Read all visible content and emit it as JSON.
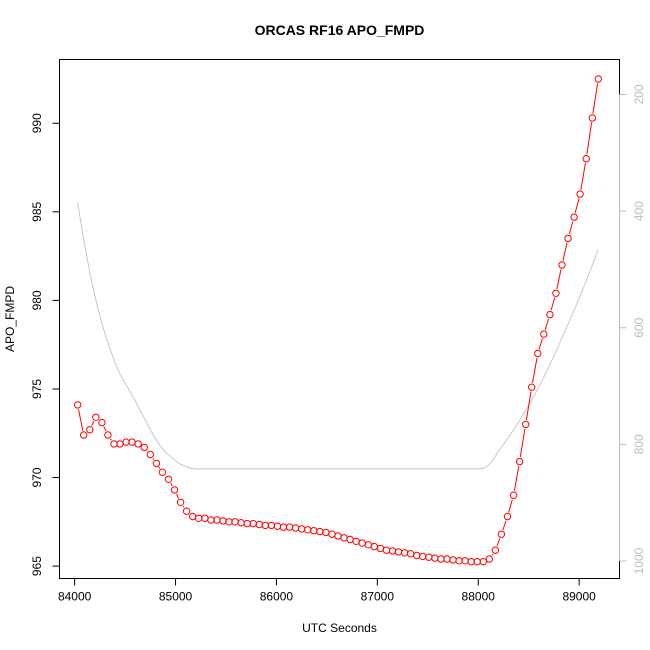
{
  "chart_data": {
    "type": "line",
    "title": "ORCAS RF16 APO_FMPD",
    "xlabel": "UTC Seconds",
    "ylabel": "APO_FMPD",
    "xlim": [
      83850,
      89400
    ],
    "ylim": [
      964.3,
      993.6
    ],
    "right_ylim": [
      1030,
      140
    ],
    "x_ticks": [
      84000,
      85000,
      86000,
      87000,
      88000,
      89000
    ],
    "x_tick_labels": [
      "84000",
      "85000",
      "86000",
      "87000",
      "88000",
      "89000"
    ],
    "y_ticks": [
      965,
      970,
      975,
      980,
      985,
      990
    ],
    "y_tick_labels": [
      "965",
      "970",
      "975",
      "980",
      "985",
      "990"
    ],
    "right_y_ticks": [
      200,
      400,
      600,
      800,
      1000
    ],
    "right_y_tick_labels": [
      "200",
      "400",
      "600",
      "800",
      "1000"
    ],
    "grid": false,
    "colors": {
      "series": "#ff0000",
      "secondary": "#c8c8c8",
      "axis": "#000000",
      "right_axis": "#bdbdbd"
    },
    "series": [
      {
        "marker": "circle-open",
        "line_style": "solid",
        "x": [
          84030,
          84090,
          84150,
          84210,
          84270,
          84330,
          84390,
          84450,
          84510,
          84570,
          84630,
          84690,
          84750,
          84810,
          84870,
          84930,
          84990,
          85050,
          85110,
          85170,
          85230,
          85290,
          85350,
          85410,
          85470,
          85530,
          85590,
          85650,
          85710,
          85770,
          85830,
          85890,
          85950,
          86010,
          86070,
          86130,
          86190,
          86250,
          86310,
          86370,
          86430,
          86490,
          86550,
          86610,
          86670,
          86730,
          86790,
          86850,
          86910,
          86970,
          87030,
          87090,
          87150,
          87210,
          87270,
          87330,
          87390,
          87450,
          87510,
          87570,
          87630,
          87690,
          87750,
          87810,
          87870,
          87930,
          87990,
          88050,
          88110,
          88170,
          88230,
          88290,
          88350,
          88410,
          88470,
          88530,
          88590,
          88650,
          88710,
          88770,
          88830,
          88890,
          88950,
          89010,
          89070,
          89130,
          89190
        ],
        "y": [
          974.1,
          972.4,
          972.7,
          973.4,
          973.1,
          972.4,
          971.9,
          971.9,
          972.0,
          972.0,
          971.9,
          971.7,
          971.3,
          970.8,
          970.3,
          969.9,
          969.3,
          968.6,
          968.1,
          967.8,
          967.7,
          967.7,
          967.6,
          967.6,
          967.55,
          967.5,
          967.5,
          967.45,
          967.4,
          967.4,
          967.35,
          967.3,
          967.3,
          967.25,
          967.2,
          967.2,
          967.15,
          967.1,
          967.05,
          967.0,
          966.95,
          966.9,
          966.8,
          966.7,
          966.6,
          966.5,
          966.4,
          966.3,
          966.2,
          966.1,
          966.0,
          965.9,
          965.85,
          965.8,
          965.75,
          965.7,
          965.6,
          965.55,
          965.5,
          965.45,
          965.4,
          965.4,
          965.35,
          965.3,
          965.3,
          965.25,
          965.25,
          965.25,
          965.4,
          965.9,
          966.8,
          967.8,
          969.0,
          970.9,
          973.0,
          975.1,
          977.0,
          978.1,
          979.2,
          980.4,
          982.0,
          983.5,
          984.7,
          986.0,
          988.0,
          990.3,
          992.5
        ]
      },
      {
        "axis": "right",
        "marker": "none",
        "x": [
          84030,
          84060,
          84100,
          84150,
          84200,
          84250,
          84300,
          84350,
          84400,
          84450,
          84500,
          84550,
          84600,
          84650,
          84700,
          84750,
          84800,
          84850,
          84900,
          84950,
          85000,
          85050,
          85100,
          85150,
          85200,
          85400,
          85600,
          85800,
          86000,
          86200,
          86400,
          86600,
          86800,
          87000,
          87200,
          87400,
          87600,
          87800,
          88000,
          88050,
          88100,
          88150,
          88200,
          88300,
          88400,
          88500,
          88600,
          88700,
          88800,
          88900,
          89000,
          89100,
          89190
        ],
        "y": [
          385,
          418,
          459,
          505,
          545,
          580,
          610,
          636,
          660,
          680,
          695,
          710,
          725,
          742,
          758,
          775,
          790,
          803,
          813,
          821,
          828,
          834,
          838,
          841,
          842,
          842,
          842,
          842,
          842,
          842,
          842,
          842,
          842,
          842,
          842,
          842,
          842,
          842,
          842,
          841,
          836,
          826,
          812,
          788,
          762,
          733,
          702,
          667,
          629,
          590,
          550,
          507,
          465
        ]
      }
    ]
  }
}
